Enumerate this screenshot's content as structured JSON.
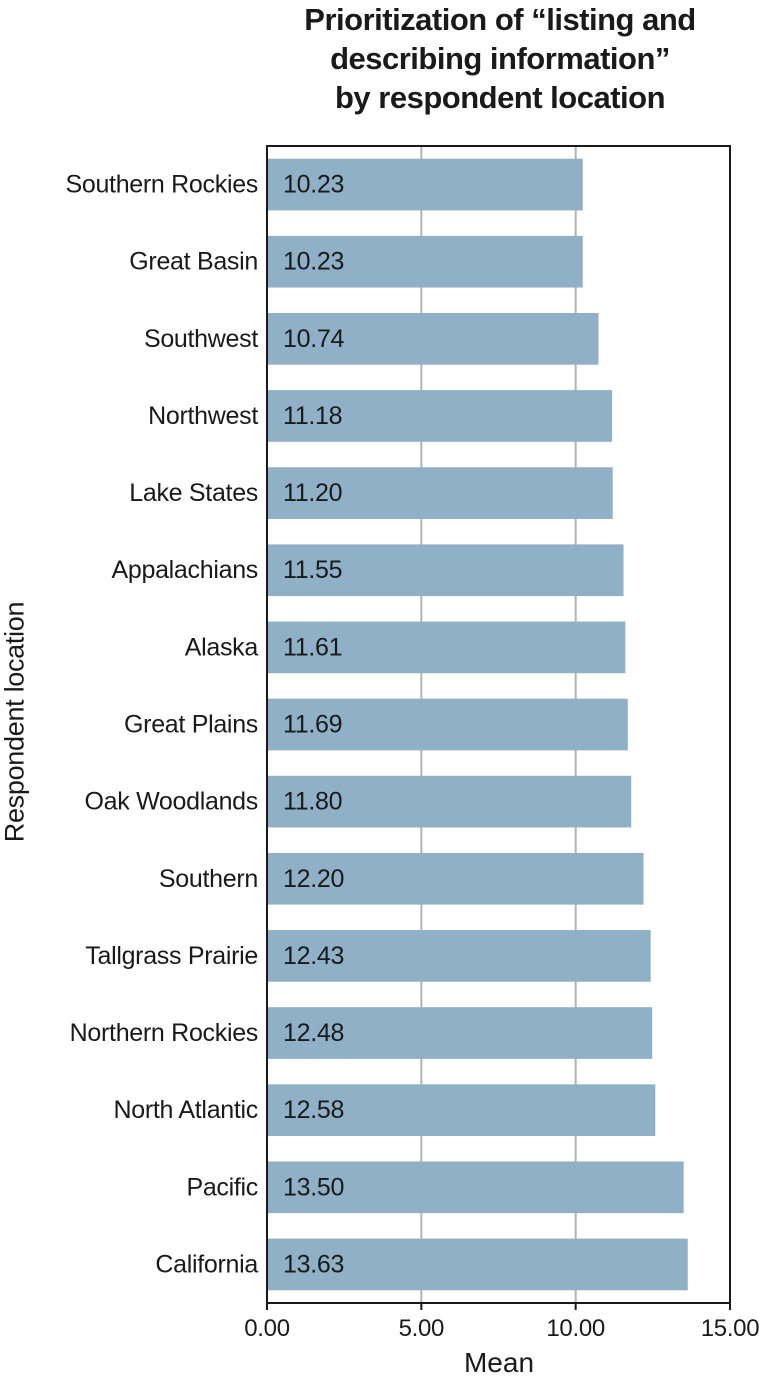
{
  "chart_data": {
    "type": "bar",
    "orientation": "horizontal",
    "title_lines": [
      "Prioritization of “listing and",
      "describing information”",
      "by respondent location"
    ],
    "xlabel": "Mean",
    "ylabel": "Respondent location",
    "xlim": [
      0,
      15
    ],
    "xticks": [
      "0.00",
      "5.00",
      "10.00",
      "15.00"
    ],
    "grid": "vertical",
    "bar_color": "#8fb0c6",
    "categories": [
      "Southern Rockies",
      "Great Basin",
      "Southwest",
      "Northwest",
      "Lake States",
      "Appalachians",
      "Alaska",
      "Great Plains",
      "Oak Woodlands",
      "Southern",
      "Tallgrass Prairie",
      "Northern Rockies",
      "North Atlantic",
      "Pacific",
      "California"
    ],
    "values": [
      10.23,
      10.23,
      10.74,
      11.18,
      11.2,
      11.55,
      11.61,
      11.69,
      11.8,
      12.2,
      12.43,
      12.48,
      12.58,
      13.5,
      13.63
    ],
    "value_labels": [
      "10.23",
      "10.23",
      "10.74",
      "11.18",
      "11.20",
      "11.55",
      "11.61",
      "11.69",
      "11.80",
      "12.20",
      "12.43",
      "12.48",
      "12.58",
      "13.50",
      "13.63"
    ]
  }
}
